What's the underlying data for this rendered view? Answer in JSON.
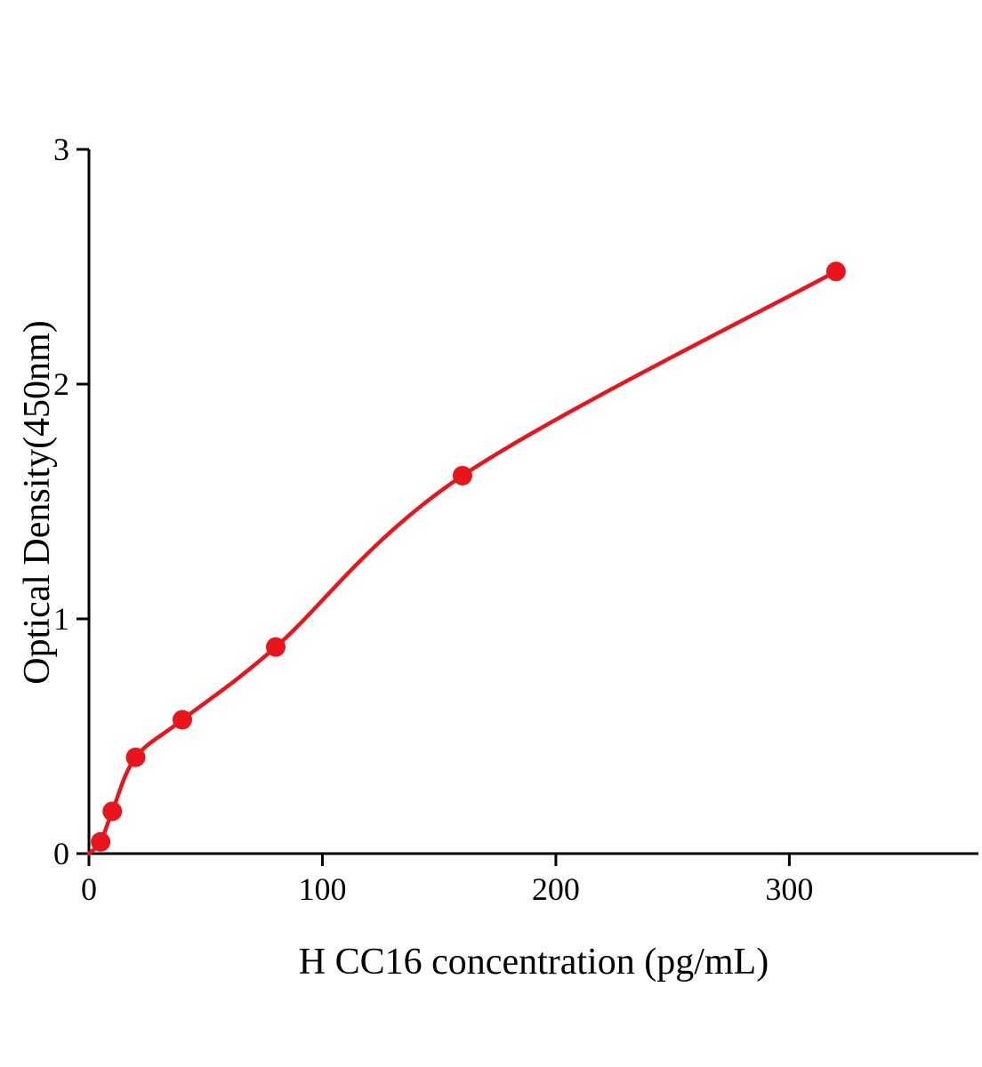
{
  "chart_data": {
    "type": "scatter",
    "title": "",
    "xlabel": "H CC16 concentration (pg/mL)",
    "ylabel": "Optical Density(450nm)",
    "x": [
      5,
      10,
      20,
      40,
      80,
      160,
      320
    ],
    "y": [
      0.05,
      0.18,
      0.41,
      0.57,
      0.88,
      1.61,
      2.48
    ],
    "curve_start_x": 0,
    "curve_start_y": 0,
    "xlim": [
      0,
      381
    ],
    "ylim": [
      0,
      3
    ],
    "xticks": [
      0,
      100,
      200,
      300
    ],
    "yticks": [
      0,
      1,
      2,
      3
    ],
    "legend": null,
    "grid": false,
    "point_color": "#e8151c",
    "line_color": "#e8151c",
    "axis_color": "#000000",
    "marker_radius": 11
  }
}
